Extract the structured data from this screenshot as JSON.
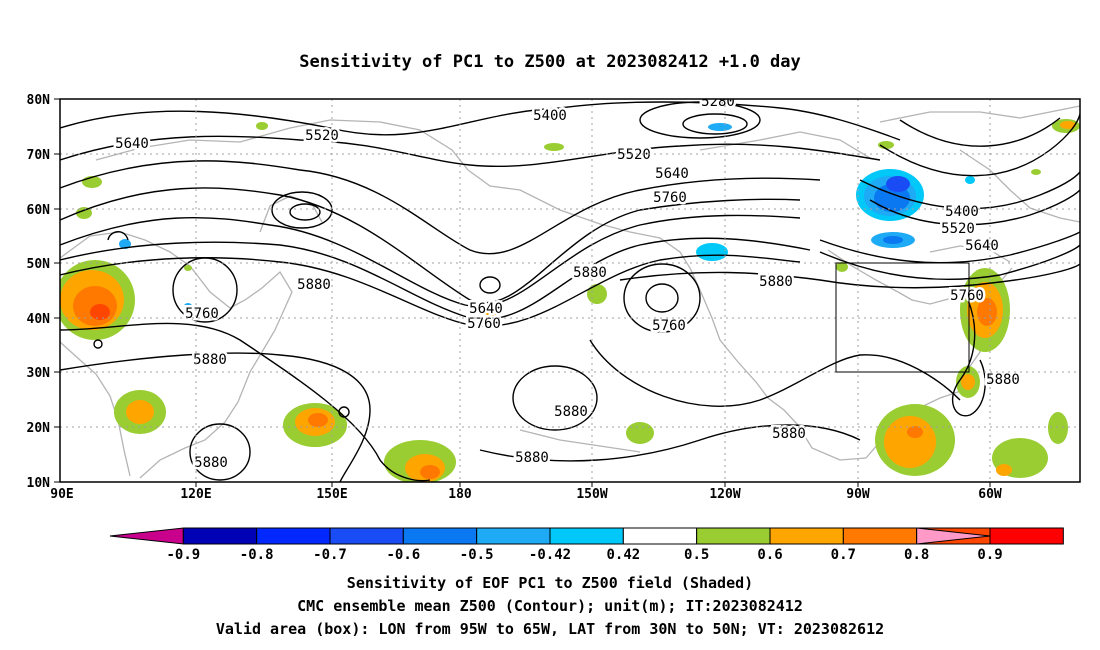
{
  "title": "Sensitivity of PC1 to Z500 at 2023082412 +1.0 day",
  "lat_labels": [
    "80N",
    "70N",
    "60N",
    "50N",
    "40N",
    "30N",
    "20N",
    "10N"
  ],
  "lon_labels": [
    "90E",
    "120E",
    "150E",
    "180",
    "150W",
    "120W",
    "90W",
    "60W"
  ],
  "contour_labels": [
    "5280",
    "5400",
    "5400",
    "5520",
    "5520",
    "5520",
    "5640",
    "5640",
    "5640",
    "5640",
    "5760",
    "5760",
    "5760",
    "5760",
    "5760",
    "5880",
    "5880",
    "5880",
    "5880",
    "5880",
    "5880",
    "5880",
    "5880",
    "5880"
  ],
  "colorbar": {
    "labels": [
      "-0.9",
      "-0.8",
      "-0.7",
      "-0.6",
      "-0.5",
      "-0.42",
      "0.42",
      "0.5",
      "0.6",
      "0.7",
      "0.8",
      "0.9"
    ],
    "colors": [
      "#c8008c",
      "#0000b4",
      "#0028ff",
      "#1a4cf5",
      "#0a78f0",
      "#1eaaf5",
      "#00c8f8",
      "#ffffff",
      "#9acd32",
      "#ffa500",
      "#ff7800",
      "#ff4600",
      "#ff0000",
      "#ff9ac8"
    ]
  },
  "valid_box": {
    "lon_min": -95,
    "lon_max": -65,
    "lat_min": 30,
    "lat_max": 50
  },
  "footer": {
    "line1": "Sensitivity of EOF PC1 to Z500 field (Shaded)",
    "line2": "CMC ensemble mean Z500 (Contour); unit(m); IT:2023082412",
    "line3": "Valid area (box): LON from 95W to 65W, LAT from 30N to 50N; VT: 2023082612"
  }
}
